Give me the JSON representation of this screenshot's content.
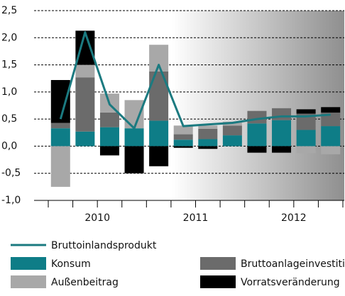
{
  "chart_data": {
    "type": "bar",
    "categories": [
      null,
      null,
      null,
      null,
      null,
      null,
      null,
      null,
      null,
      null,
      null,
      null
    ],
    "x_groups": [
      "2010",
      "2011",
      "2012"
    ],
    "series": [
      {
        "name": "Konsum",
        "color": "#0e7d87",
        "values": [
          0.33,
          0.27,
          0.35,
          0.33,
          0.47,
          0.12,
          0.13,
          0.2,
          0.42,
          0.48,
          0.3,
          0.37
        ]
      },
      {
        "name": "Bruttoanlageinvestitionen",
        "color": "#6b6b6b",
        "values": [
          0.1,
          1.0,
          0.27,
          0,
          0.91,
          0.1,
          0.19,
          0.18,
          0.23,
          0.22,
          0.3,
          0.25
        ]
      },
      {
        "name": "Außenbeitrag",
        "color": "#a8a8a8",
        "values": [
          -0.75,
          0.23,
          0.35,
          0.52,
          0.49,
          0.16,
          0.06,
          0.07,
          0,
          0,
          -0.13,
          -0.15
        ]
      },
      {
        "name": "Vorratsveränderung",
        "color": "#000000",
        "values": [
          0.79,
          0.63,
          -0.17,
          -0.5,
          -0.37,
          -0.03,
          -0.05,
          0,
          -0.12,
          -0.12,
          0.08,
          0.1
        ]
      },
      {
        "name": "Bruttoinlandsprodukt",
        "type": "line",
        "color": "#1b7a80",
        "values": [
          0.5,
          2.1,
          0.77,
          0.33,
          1.5,
          0.37,
          0.4,
          0.43,
          0.5,
          0.55,
          0.55,
          0.58
        ]
      }
    ],
    "stacked": true,
    "ylim": [
      -1.0,
      2.5
    ],
    "yticks": [
      {
        "value": -1.0,
        "label": "-1,0"
      },
      {
        "value": -0.5,
        "label": "-0,5"
      },
      {
        "value": 0,
        "label": "0,0"
      },
      {
        "value": 0.5,
        "label": "0,5"
      },
      {
        "value": 1.0,
        "label": "1,0"
      },
      {
        "value": 1.5,
        "label": "1,5"
      },
      {
        "value": 2.0,
        "label": "2,0"
      },
      {
        "value": 2.5,
        "label": "2,5"
      }
    ],
    "grid": true
  }
}
